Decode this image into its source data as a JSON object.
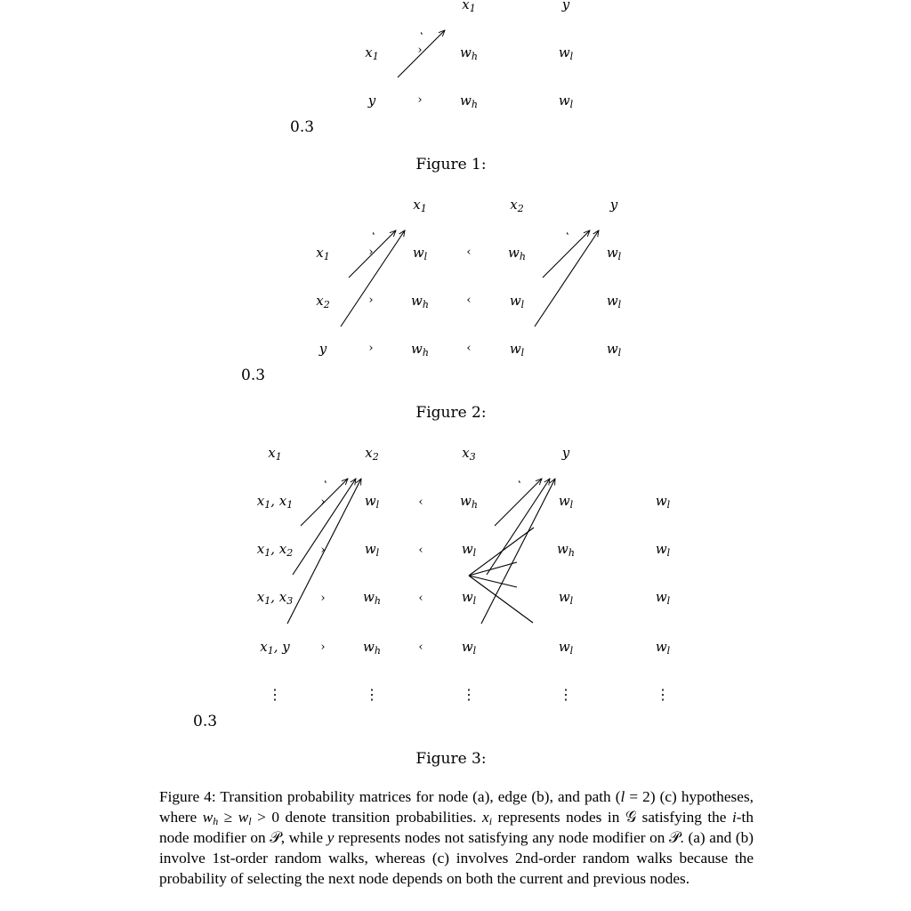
{
  "figures": [
    {
      "label": "Figure 1:",
      "scale": "0.3",
      "col_headers": [
        "x1",
        "y"
      ],
      "row_headers": [
        "x1",
        "y"
      ],
      "cells": [
        [
          "wh",
          "wl"
        ],
        [
          "wh",
          "wl"
        ]
      ],
      "separators": [
        "›",
        "›"
      ]
    },
    {
      "label": "Figure 2:",
      "scale": "0.3",
      "col_headers": [
        "x1",
        "x2",
        "y"
      ],
      "row_headers": [
        "x1",
        "x2",
        "y"
      ],
      "cells": [
        [
          "wl",
          "wh",
          "wl"
        ],
        [
          "wh",
          "wl",
          "wl"
        ],
        [
          "wh",
          "wl",
          "wl"
        ]
      ],
      "separators": [
        [
          "›",
          "‹"
        ],
        [
          "›",
          "‹"
        ],
        [
          "›",
          "‹"
        ]
      ]
    },
    {
      "label": "Figure 3:",
      "scale": "0.3",
      "col_headers": [
        "x1",
        "x2",
        "x3",
        "y"
      ],
      "row_headers": [
        "x1, x1",
        "x1, x2",
        "x1, x3",
        "x1, y"
      ],
      "cells": [
        [
          "wl",
          "wh",
          "wl",
          "wl"
        ],
        [
          "wl",
          "wl",
          "wh",
          "wl"
        ],
        [
          "wh",
          "wl",
          "wl",
          "wl"
        ],
        [
          "wh",
          "wl",
          "wl",
          "wl"
        ]
      ],
      "separators": [
        [
          "›",
          "‹"
        ],
        [
          "›",
          "‹"
        ],
        [
          "›",
          "‹"
        ],
        [
          "›",
          "‹"
        ]
      ],
      "ellipsis": "⋮"
    }
  ],
  "caption": {
    "label": "Figure 4:",
    "text": "Transition probability matrices for node (a), edge (b), and path (l = 2) (c) hypotheses, where w_h ≥ w_l > 0 denote transition probabilities. x_i represents nodes in G satisfying the i-th node modifier on P, while y represents nodes not satisfying any node modifier on P. (a) and (b) involve 1st-order random walks, whereas (c) involves 2nd-order random walks because the probability of selecting the next node depends on both the current and previous nodes."
  }
}
